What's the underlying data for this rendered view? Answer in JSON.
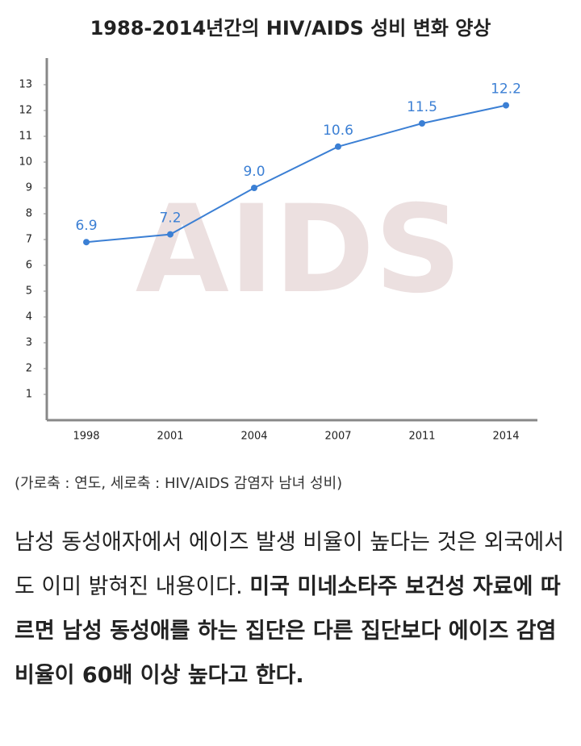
{
  "chart_data": {
    "type": "line",
    "title": "1988-2014년간의 HIV/AIDS 성비 변화 양상",
    "watermark": "AIDS",
    "categories": [
      "1998",
      "2001",
      "2004",
      "2007",
      "2011",
      "2014"
    ],
    "values": [
      6.9,
      7.2,
      9.0,
      10.6,
      11.5,
      12.2
    ],
    "value_labels": [
      "6.9",
      "7.2",
      "9.0",
      "10.6",
      "11.5",
      "12.2"
    ],
    "color": "#3b7fd4",
    "ylim": [
      0,
      14
    ],
    "yticks": [
      1,
      2,
      3,
      4,
      5,
      6,
      7,
      8,
      9,
      10,
      11,
      12,
      13
    ],
    "grid": false
  },
  "caption": "(가로축 : 연도, 세로축 : HIV/AIDS 감염자 남녀 성비)",
  "body": {
    "normal": "남성 동성애자에서 에이즈 발생 비율이 높다는 것은 외국에서도 이미 밝혀진 내용이다. ",
    "bold": "미국 미네소타주 보건성 자료에 따르면 남성 동성애를 하는 집단은 다른 집단보다 에이즈 감염 비율이 60배 이상 높다고 한다."
  }
}
